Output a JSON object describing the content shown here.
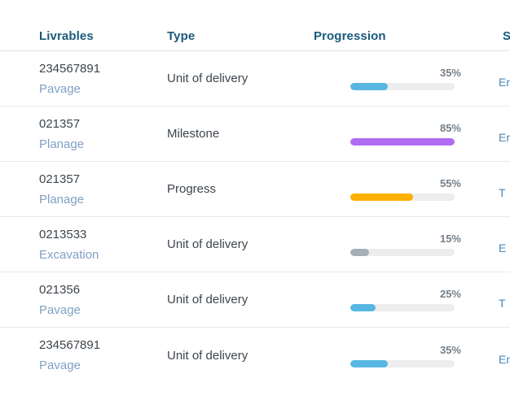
{
  "table": {
    "columns": [
      {
        "key": "livrables",
        "label": "Livrables"
      },
      {
        "key": "type",
        "label": "Type"
      },
      {
        "key": "progression",
        "label": "Progression"
      },
      {
        "key": "status",
        "label": "S"
      }
    ],
    "rows": [
      {
        "id": "234567891",
        "name": "Pavage",
        "type": "Unit of delivery",
        "progress_label": "35%",
        "progress_percent": 35,
        "bar_fill_percent": 36,
        "bar_color": "#57b7e2",
        "status_visible_text": "En"
      },
      {
        "id": "021357",
        "name": "Planage",
        "type": "Milestone",
        "progress_label": "85%",
        "progress_percent": 85,
        "bar_fill_percent": 100,
        "bar_color": "#af6cf3",
        "status_visible_text": "En"
      },
      {
        "id": "021357",
        "name": "Planage",
        "type": "Progress",
        "progress_label": "55%",
        "progress_percent": 55,
        "bar_fill_percent": 60,
        "bar_color": "#fbb003",
        "status_visible_text": "T"
      },
      {
        "id": "0213533",
        "name": "Excavation",
        "type": "Unit of delivery",
        "progress_label": "15%",
        "progress_percent": 15,
        "bar_fill_percent": 18,
        "bar_color": "#a6aeb8",
        "status_visible_text": "E"
      },
      {
        "id": "021356",
        "name": "Pavage",
        "type": "Unit of delivery",
        "progress_label": "25%",
        "progress_percent": 25,
        "bar_fill_percent": 24,
        "bar_color": "#57b7e2",
        "status_visible_text": "T"
      },
      {
        "id": "234567891",
        "name": "Pavage",
        "type": "Unit of delivery",
        "progress_label": "35%",
        "progress_percent": 35,
        "bar_fill_percent": 36,
        "bar_color": "#57b7e2",
        "status_visible_text": "En"
      }
    ]
  },
  "colors": {
    "header_text": "#1a5a7c",
    "cell_text": "#3d454d",
    "link_text": "#7f9fc4",
    "status_text": "#4a87b8",
    "percent_text": "#75808a",
    "track": "#ededed",
    "bar_blue": "#57b7e2",
    "bar_purple": "#af6cf3",
    "bar_orange": "#fbb003",
    "bar_gray": "#a6aeb8"
  }
}
